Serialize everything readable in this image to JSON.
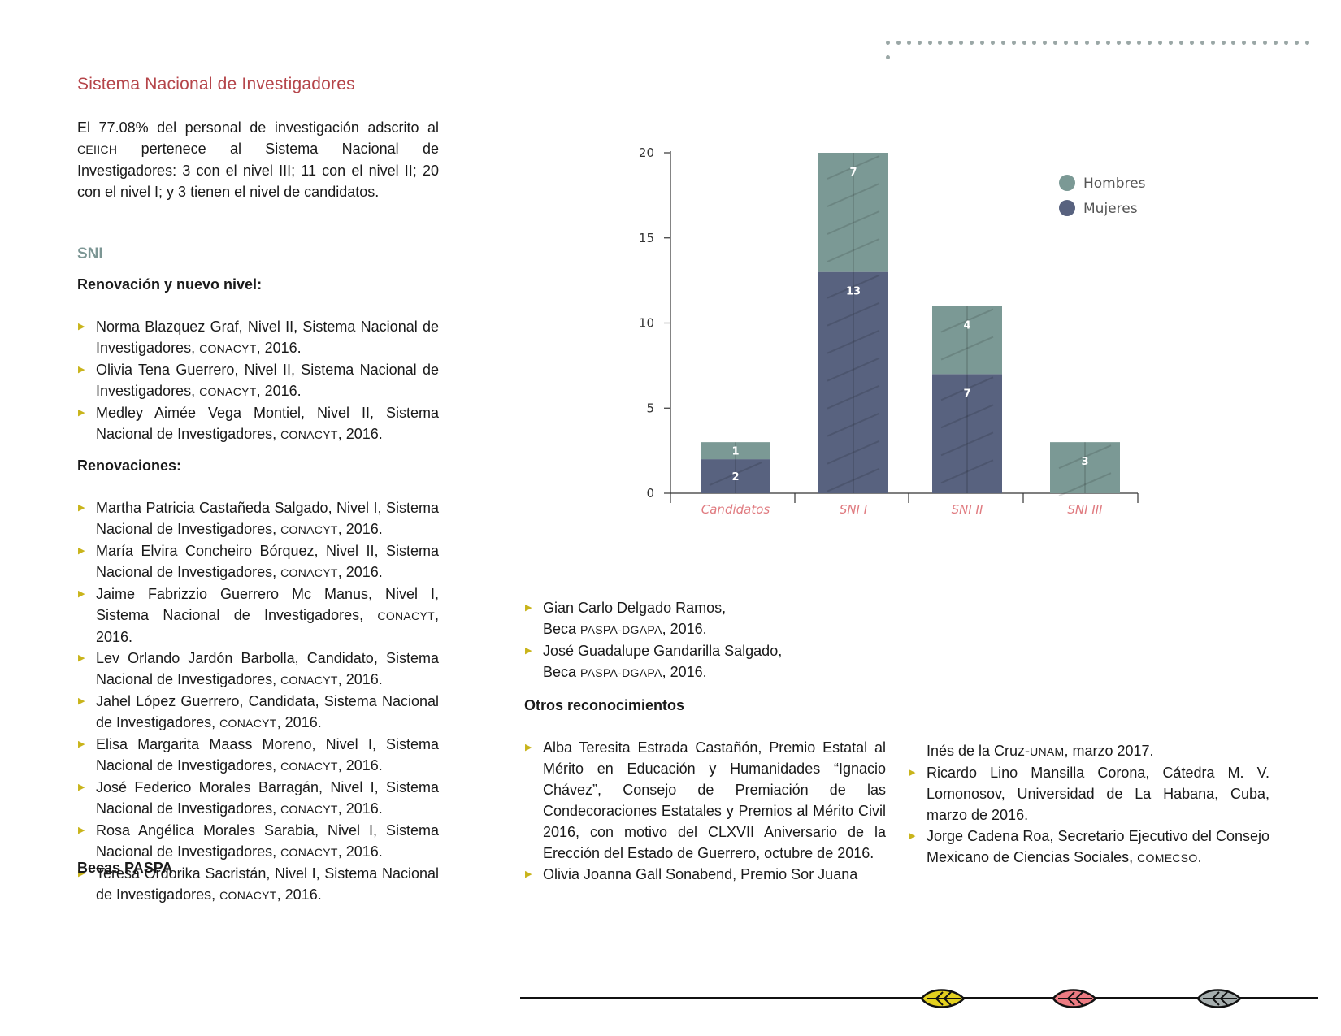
{
  "section_title": "Sistema Nacional de Investigadores",
  "intro": {
    "part1": "El 77.08% del personal de investigación adscrito al ",
    "org": "CEIICH",
    "part2": " pertenece al Sistema Nacional de Investigadores: 3 con el nivel III; 11 con el nivel II; 20 con el nivel I; y 3 tienen el nivel de candidatos."
  },
  "sni_heading": "SNI",
  "renovacion_heading": "Renovación y nuevo nivel:",
  "renovacion_items": [
    {
      "text": "Norma Blazquez Graf, Nivel II, Sistema Nacional de Investigadores, ",
      "org": "CONACYT",
      "tail": ", 2016."
    },
    {
      "text": "Olivia Tena Guerrero, Nivel II, Sistema Nacional de Investigadores, ",
      "org": "CONACYT",
      "tail": ", 2016."
    },
    {
      "text": "Medley Aimée Vega Montiel, Nivel II, Sistema Nacional de Investigadores, ",
      "org": "CONACYT",
      "tail": ", 2016."
    }
  ],
  "renovaciones_heading": "Renovaciones:",
  "renovaciones_items": [
    {
      "text": "Martha Patricia Castañeda Salgado, Nivel I, Sistema Nacional de Investigadores, ",
      "org": "CONACYT",
      "tail": ", 2016."
    },
    {
      "text": "María Elvira Concheiro Bórquez, Nivel II, Sistema Nacional de Investigadores, ",
      "org": "CONACYT",
      "tail": ", 2016."
    },
    {
      "text": "Jaime Fabrizzio Guerrero Mc Manus, Nivel I, Sistema Nacional de Investigadores, ",
      "org": "CONACYT",
      "tail": ", 2016."
    },
    {
      "text": "Lev Orlando Jardón Barbolla, Candidato, Sistema Nacional de Investigadores, ",
      "org": "CONACYT",
      "tail": ", 2016."
    },
    {
      "text": "Jahel López Guerrero, Candidata, Sistema Nacional de Investigadores, ",
      "org": "CONACYT",
      "tail": ", 2016."
    },
    {
      "text": "Elisa Margarita Maass Moreno, Nivel I, Sistema Nacional de Investigadores, ",
      "org": "CONACYT",
      "tail": ", 2016."
    },
    {
      "text": "José Federico Morales Barragán, Nivel I, Sistema Nacional de Investigadores, ",
      "org": "CONACYT",
      "tail": ", 2016."
    },
    {
      "text": "Rosa Angélica Morales Sarabia, Nivel I, Sistema Nacional de Investigadores, ",
      "org": "CONACYT",
      "tail": ", 2016."
    },
    {
      "text": "Teresa Ordorika Sacristán, Nivel I, Sistema Nacional de Investigadores, ",
      "org": "CONACYT",
      "tail": ", 2016."
    }
  ],
  "becas_heading": "Becas PASPA",
  "becas_items": [
    {
      "text": "Gian Carlo Delgado Ramos, ",
      "line2": "Beca ",
      "org": "PASPA-DGAPA",
      "tail": ", 2016."
    },
    {
      "text": "José Guadalupe Gandarilla Salgado, ",
      "line2": "Beca ",
      "org": "PASPA-DGAPA",
      "tail": ", 2016."
    }
  ],
  "otros_heading": "Otros reconocimientos",
  "otros_col1": [
    {
      "text": "Alba Teresita Estrada Castañón, Premio Estatal al Mérito en Educación y Humanidades “Ignacio Chávez”, Consejo de Premiación de las Condecoraciones Estatales y Premios al Mérito Civil 2016, con motivo del CLXVII Aniversario de la Erección del Estado de Guerrero, octubre de 2016."
    },
    {
      "text": "Olivia Joanna Gall Sonabend, Premio Sor Juana"
    }
  ],
  "otros_col2_cont": {
    "text": "Inés de la Cruz-",
    "org": "UNAM",
    "tail": ", marzo 2017."
  },
  "otros_col2": [
    {
      "text": "Ricardo Lino Mansilla Corona, Cátedra M. V. Lomonosov, Universidad de La Habana, Cuba, marzo de 2016."
    },
    {
      "text": "Jorge Cadena Roa, Secretario Ejecutivo del Consejo Mexicano de Ciencias Sociales, ",
      "org": "COMECSO",
      "tail": "."
    }
  ],
  "chart_data": {
    "type": "bar",
    "stacked": true,
    "categories": [
      "Candidatos",
      "SNI I",
      "SNI II",
      "SNI III"
    ],
    "series": [
      {
        "name": "Mujeres",
        "values": [
          2,
          13,
          7,
          0
        ],
        "color": "#58627f"
      },
      {
        "name": "Hombres",
        "values": [
          1,
          7,
          4,
          3
        ],
        "color": "#7b9995"
      }
    ],
    "yticks": [
      0,
      5,
      10,
      15,
      20
    ],
    "ylim": [
      0,
      20
    ],
    "legend_position": "top-right",
    "grid": false
  },
  "colors": {
    "accent_red": "#b5454a",
    "sni_heading": "#7c9694",
    "bullet": "#c9b41b"
  },
  "footer_icons": [
    "leaf-yellow-icon",
    "leaf-pink-icon",
    "leaf-gray-icon"
  ]
}
